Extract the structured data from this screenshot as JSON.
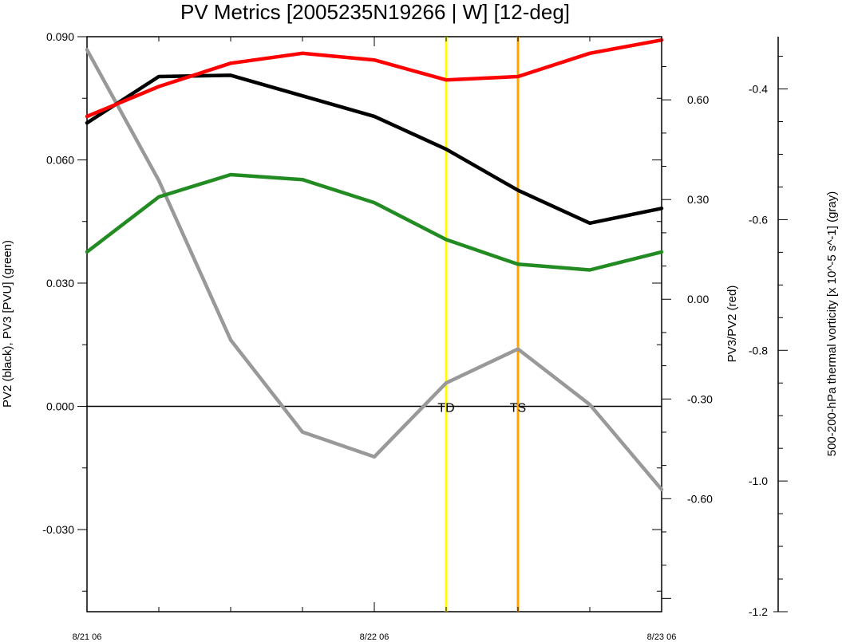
{
  "chart_data": {
    "type": "line",
    "title": "PV Metrics [2005235N19266 | W] [12-deg]",
    "x_tick_labels": [
      "8/21 06",
      "8/22 06",
      "8/23 06"
    ],
    "x": [
      0,
      0.25,
      0.5,
      0.75,
      1.0,
      1.25,
      1.5,
      1.75,
      2.0
    ],
    "x_unit_note": "",
    "left_axis": {
      "label": "PV2 (black), PV3 [PVU] (green)",
      "ylim": [
        -0.05,
        0.09
      ],
      "ticks": [
        "0.090",
        "0.060",
        "0.030",
        "0.000",
        "-0.030"
      ],
      "tick_values": [
        0.09,
        0.06,
        0.03,
        0.0,
        -0.03
      ]
    },
    "right_axis": {
      "label": "PV3/PV2 (red)",
      "ylim": [
        -0.94,
        0.79
      ],
      "ticks": [
        "0.60",
        "0.30",
        "0.00",
        "-0.30",
        "-0.60"
      ],
      "tick_values": [
        0.6,
        0.3,
        0.0,
        -0.3,
        -0.6
      ]
    },
    "far_right_axis": {
      "label": "500-200-hPa thermal vorticity [x 10^-5 s^-1] (gray)",
      "ylim": [
        -1.2,
        -0.32
      ],
      "ticks": [
        "-0.4",
        "-0.6",
        "-0.8",
        "-1.0",
        "-1.2"
      ],
      "tick_values": [
        -0.4,
        -0.6,
        -0.8,
        -1.0,
        -1.2
      ]
    },
    "series": [
      {
        "name": "PV2",
        "axis": "left",
        "color": "#000000",
        "values": [
          0.069,
          0.0803,
          0.0806,
          0.0756,
          0.0706,
          0.0626,
          0.0526,
          0.0446,
          0.0482
        ]
      },
      {
        "name": "PV3",
        "axis": "left",
        "color": "#228b22",
        "values": [
          0.0376,
          0.051,
          0.0564,
          0.0552,
          0.0496,
          0.0406,
          0.0346,
          0.0332,
          0.0376
        ]
      },
      {
        "name": "PV3/PV2",
        "axis": "right",
        "color": "#ff0000",
        "values": [
          0.55,
          0.64,
          0.71,
          0.74,
          0.72,
          0.66,
          0.67,
          0.74,
          0.78
        ]
      },
      {
        "name": "thermal vorticity",
        "axis": "far_right",
        "color": "#999999",
        "values": [
          -0.34,
          -0.54,
          -0.784,
          -0.925,
          -0.963,
          -0.85,
          -0.798,
          -0.883,
          -1.013
        ]
      }
    ],
    "zero_line": 0.0,
    "stage_markers": [
      {
        "label": "TD",
        "x": 1.25,
        "color": "#ffff00"
      },
      {
        "label": "TS",
        "x": 1.5,
        "color": "#ffa500"
      }
    ]
  }
}
